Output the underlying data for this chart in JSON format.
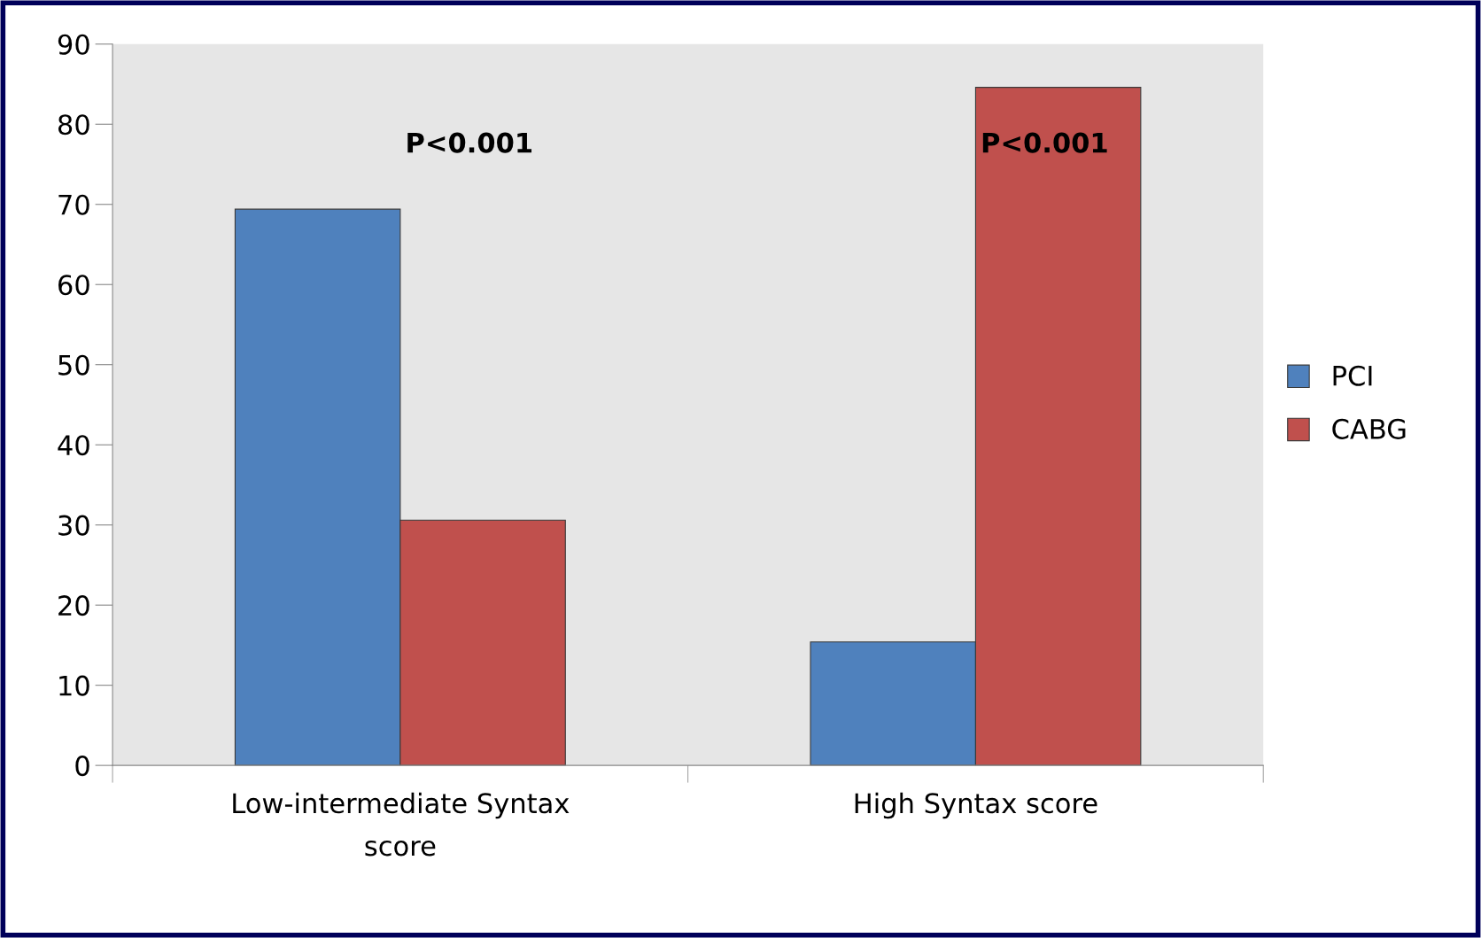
{
  "chart_data": {
    "type": "bar",
    "categories": [
      "Low-intermediate Syntax\nscore",
      "High Syntax score"
    ],
    "series": [
      {
        "name": "PCI",
        "color": "#4f81bd",
        "values": [
          69.4,
          15.4
        ]
      },
      {
        "name": "CABG",
        "color": "#c0504d",
        "values": [
          30.6,
          84.6
        ]
      }
    ],
    "ylim": [
      0,
      90
    ],
    "yticks": [
      0,
      10,
      20,
      30,
      40,
      50,
      60,
      70,
      80,
      90
    ],
    "annotations": [
      "P<0.001",
      "P<0.001"
    ],
    "legend": "right",
    "grid": false
  }
}
